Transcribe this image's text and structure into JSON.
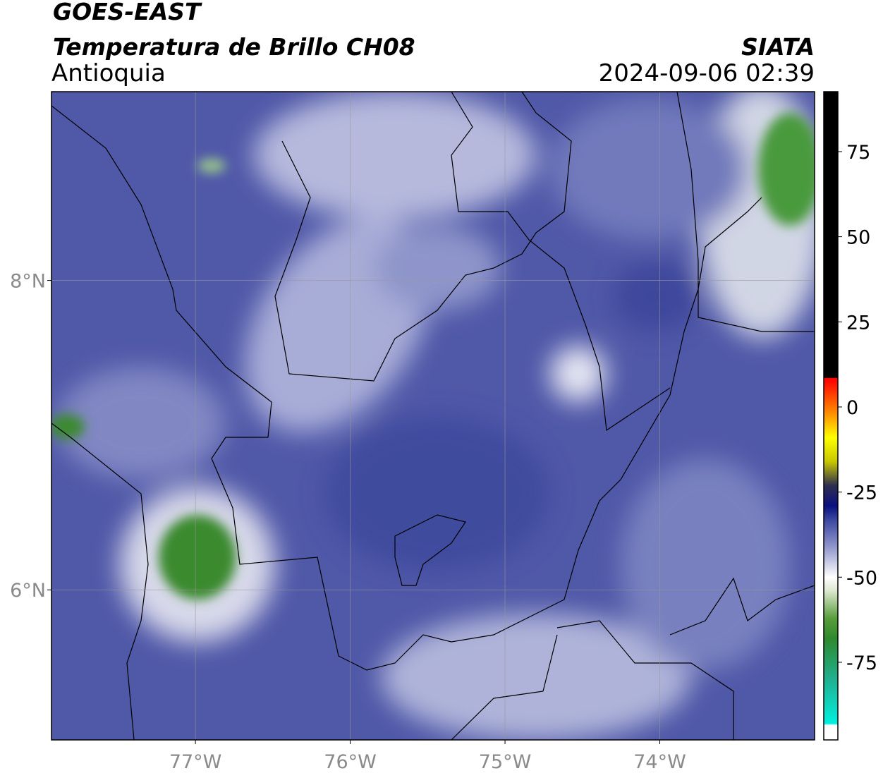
{
  "header": {
    "title": "GOES-EAST",
    "subtitle": "Temperatura de Brillo CH08",
    "region": "Antioquia",
    "source": "SIATA",
    "datetime": "2024-09-06 02:39"
  },
  "map": {
    "xlim": [
      -77.93,
      -73.0
    ],
    "ylim": [
      5.03,
      9.22
    ],
    "grid": true,
    "xticks": [
      {
        "value": -77,
        "label": "77°W"
      },
      {
        "value": -76,
        "label": "76°W"
      },
      {
        "value": -75,
        "label": "75°W"
      },
      {
        "value": -74,
        "label": "74°W"
      }
    ],
    "yticks": [
      {
        "value": 8,
        "label": "8°N"
      },
      {
        "value": 6,
        "label": "6°N"
      }
    ]
  },
  "colorbar": {
    "lim": [
      -97.8,
      92.6
    ],
    "ticks": [
      75,
      50,
      25,
      0,
      -25,
      -50,
      -75
    ],
    "colormap": [
      {
        "value": -97.8,
        "color": "#ffffff"
      },
      {
        "value": -93.5,
        "color": "#ffffff"
      },
      {
        "value": -93,
        "color": "#00f0e0"
      },
      {
        "value": -80,
        "color": "#20b090"
      },
      {
        "value": -68,
        "color": "#2e8a2e"
      },
      {
        "value": -62,
        "color": "#5a9e3c"
      },
      {
        "value": -54,
        "color": "#dce8d0"
      },
      {
        "value": -50,
        "color": "#ffffff"
      },
      {
        "value": -42,
        "color": "#9aa0d0"
      },
      {
        "value": -33,
        "color": "#3a45a0"
      },
      {
        "value": -29,
        "color": "#0a1080"
      },
      {
        "value": -23,
        "color": "#303050"
      },
      {
        "value": -16,
        "color": "#c8c800"
      },
      {
        "value": -9,
        "color": "#ffff00"
      },
      {
        "value": -2,
        "color": "#ff9000"
      },
      {
        "value": 7,
        "color": "#ff1000"
      },
      {
        "value": 8.5,
        "color": "#ff0000"
      },
      {
        "value": 8.6,
        "color": "#000000"
      },
      {
        "value": 92.6,
        "color": "#000000"
      }
    ]
  }
}
